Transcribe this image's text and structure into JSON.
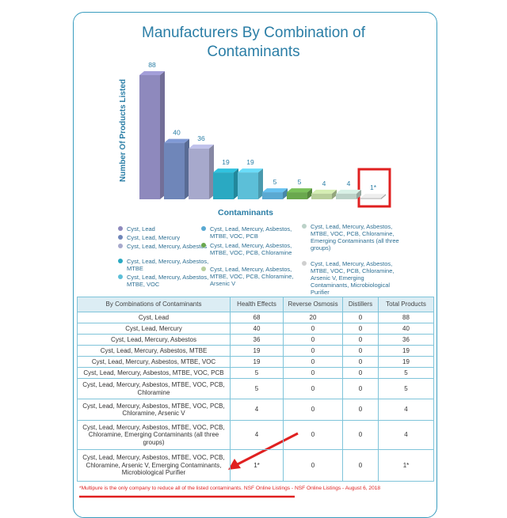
{
  "chart_data": {
    "type": "bar",
    "title": "Manufacturers By Combination of Contaminants",
    "y_label": "Number Of Products Listed",
    "x_label": "Contaminants",
    "categories": [
      "Cyst, Lead",
      "Cyst, Lead, Mercury",
      "Cyst, Lead, Mercury, Asbestos",
      "Cyst, Lead, Mercury, Asbestos, MTBE",
      "Cyst, Lead, Mercury, Asbestos, MTBE, VOC",
      "Cyst, Lead, Mercury, Asbestos, MTBE, VOC, PCB",
      "Cyst, Lead, Mercury, Asbestos, MTBE, VOC, PCB, Chloramine",
      "Cyst, Lead, Mercury, Asbestos, MTBE, VOC, PCB, Chloramine, Arsenic V",
      "Cyst, Lead, Mercury, Asbestos, MTBE, VOC, PCB, Chloramine, Emerging Contaminants (all three groups)",
      "Cyst, Lead, Mercury, Asbestos, MTBE, VOC, PCB, Chloramine, Arsenic V, Emerging Contaminants, Microbiological Purifier"
    ],
    "values": [
      88,
      40,
      36,
      19,
      19,
      5,
      5,
      4,
      4,
      1
    ],
    "value_labels": [
      "88",
      "40",
      "36",
      "19",
      "19",
      "5",
      "5",
      "4",
      "4",
      "1*"
    ],
    "colors": [
      "#8e89bd",
      "#6f86b9",
      "#a7a9cc",
      "#2aa9c2",
      "#5cbfd8",
      "#5aa9d2",
      "#6aa84e",
      "#b9cf9c",
      "#bcd2c8",
      "#cfcfcf"
    ]
  },
  "table": {
    "header": [
      "By Combinations of Contaminants",
      "Health Effects",
      "Reverse Osmosis",
      "Distillers",
      "Total Products"
    ],
    "rows": [
      [
        68,
        20,
        0,
        88
      ],
      [
        40,
        0,
        0,
        40
      ],
      [
        36,
        0,
        0,
        36
      ],
      [
        19,
        0,
        0,
        19
      ],
      [
        19,
        0,
        0,
        19
      ],
      [
        5,
        0,
        0,
        5
      ],
      [
        5,
        0,
        0,
        5
      ],
      [
        4,
        0,
        0,
        4
      ],
      [
        4,
        0,
        0,
        4
      ],
      [
        "1*",
        0,
        0,
        "1*"
      ]
    ]
  },
  "footnote": "*Multipure is the only company to reduce all of the listed contaminants. NSF Online Listings - NSF Online Listings - August 6, 2018"
}
